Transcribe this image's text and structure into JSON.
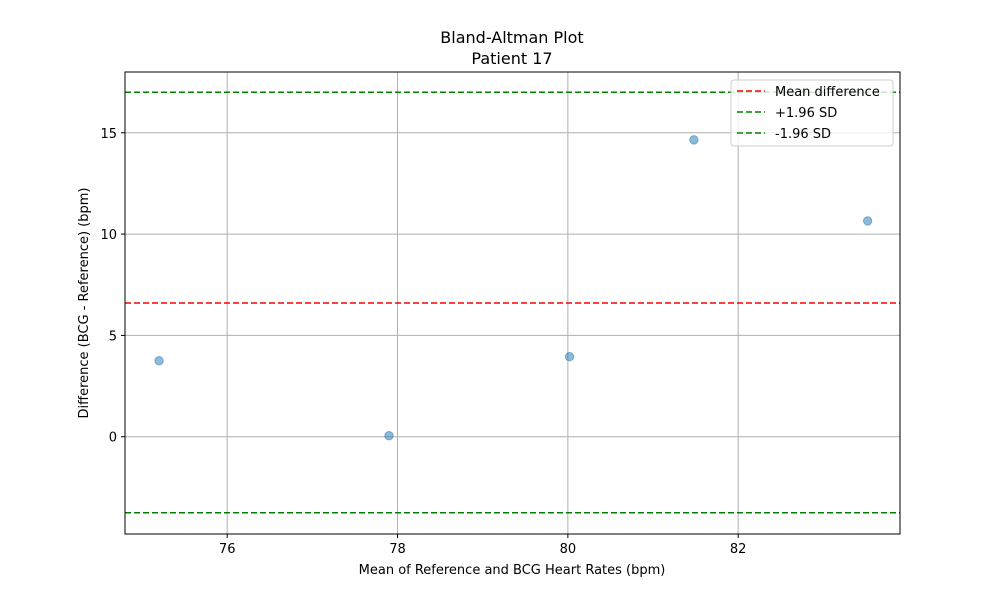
{
  "chart_data": {
    "type": "scatter",
    "title": "Bland-Altman Plot",
    "subtitle": "Patient 17",
    "xlabel": "Mean of Reference and BCG Heart Rates (bpm)",
    "ylabel": "Difference (BCG - Reference) (bpm)",
    "xlim": [
      74.8,
      83.9
    ],
    "ylim": [
      -4.8,
      18.0
    ],
    "xticks": [
      76,
      78,
      80,
      82
    ],
    "yticks": [
      0,
      5,
      10,
      15
    ],
    "grid": true,
    "legend_position": "top-right",
    "points": [
      {
        "x": 75.2,
        "y": 3.75
      },
      {
        "x": 77.9,
        "y": 0.05
      },
      {
        "x": 80.02,
        "y": 3.95
      },
      {
        "x": 81.48,
        "y": 14.65
      },
      {
        "x": 83.52,
        "y": 10.65
      }
    ],
    "point_color": "#1f77b4",
    "lines": [
      {
        "name": "Mean difference",
        "y": 6.6,
        "color": "#ff0000"
      },
      {
        "name": "+1.96 SD",
        "y": 17.0,
        "color": "#008000"
      },
      {
        "name": "-1.96 SD",
        "y": -3.75,
        "color": "#008000"
      }
    ]
  }
}
